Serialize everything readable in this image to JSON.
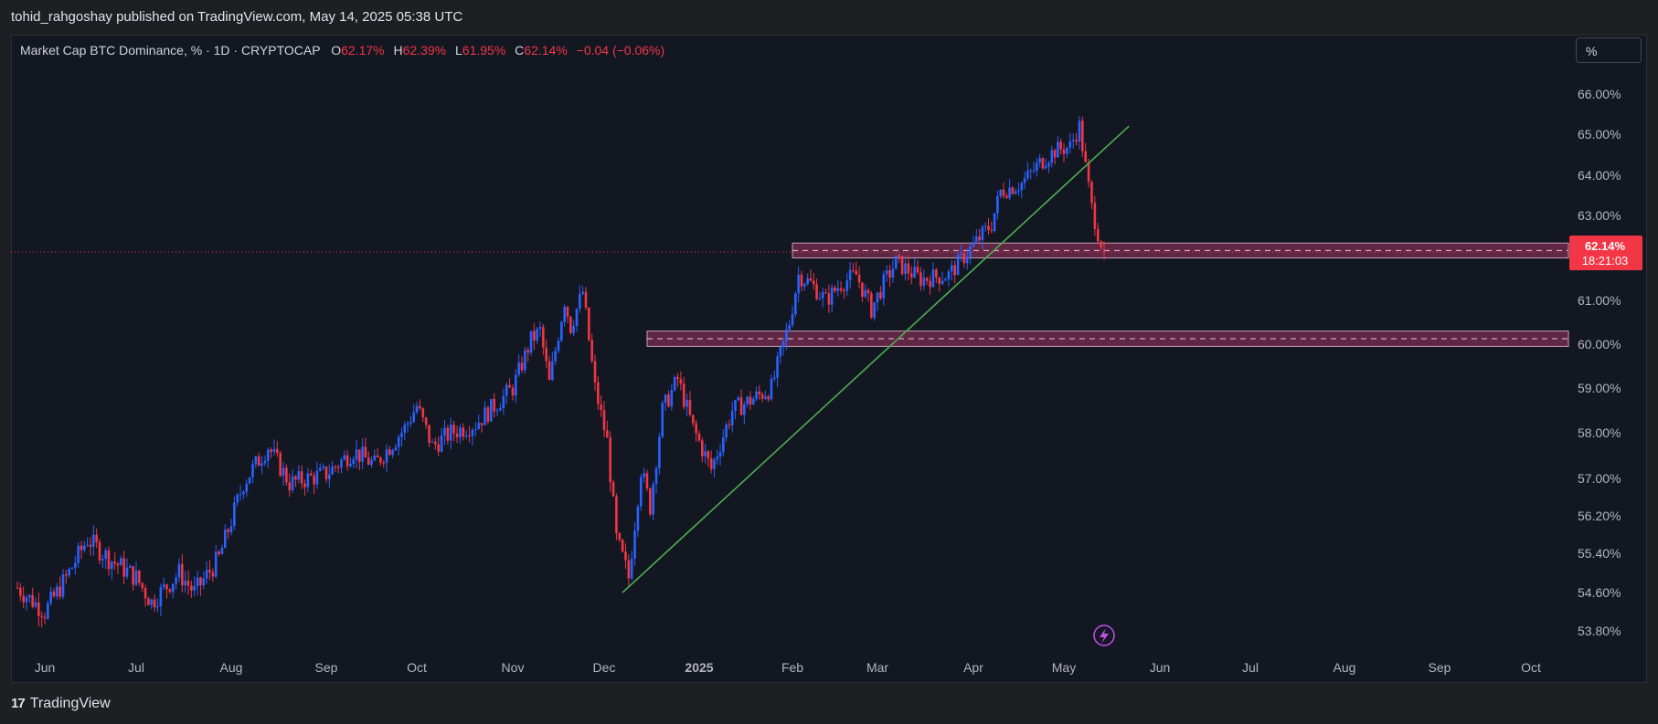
{
  "header": {
    "published_text": "tohid_rahgoshay published on TradingView.com, May 14, 2025 05:38 UTC"
  },
  "legend": {
    "symbol": "Market Cap BTC Dominance, % · 1D · CRYPTOCAP",
    "o_label": "O",
    "o_value": "62.17%",
    "h_label": "H",
    "h_value": "62.39%",
    "l_label": "L",
    "l_value": "61.95%",
    "c_label": "C",
    "c_value": "62.14%",
    "change": "−0.04 (−0.06%)"
  },
  "scale_button": {
    "label": "%"
  },
  "price_tag": {
    "price": "62.14%",
    "countdown": "18:21:03"
  },
  "footer": {
    "brand": "TradingView",
    "logo_text": "17"
  },
  "colors": {
    "up": "#2962ff",
    "down": "#f23645",
    "trendline": "#4caf50",
    "zone_fill": "#7b2d52",
    "zone_border": "#c8a0b4",
    "background": "#131722"
  },
  "chart_data": {
    "type": "candlestick",
    "x_ticks": [
      "Jun",
      "Jul",
      "Aug",
      "Sep",
      "Oct",
      "Nov",
      "Dec",
      "2025",
      "Feb",
      "Mar",
      "Apr",
      "May",
      "Jun",
      "Jul",
      "Aug",
      "Sep",
      "Oct"
    ],
    "y_ticks": [
      "66.00%",
      "65.00%",
      "64.00%",
      "63.00%",
      "61.00%",
      "60.00%",
      "59.00%",
      "58.00%",
      "57.00%",
      "56.20%",
      "55.40%",
      "54.60%",
      "53.80%"
    ],
    "y_tick_values": [
      66.0,
      65.0,
      64.0,
      63.0,
      61.0,
      60.0,
      59.0,
      58.0,
      57.0,
      56.2,
      55.4,
      54.6,
      53.8
    ],
    "last_price": 62.14,
    "anchors": [
      {
        "date": "2024-05-23",
        "close": 54.7
      },
      {
        "date": "2024-06-01",
        "close": 54.2
      },
      {
        "date": "2024-06-08",
        "close": 54.9
      },
      {
        "date": "2024-06-15",
        "close": 55.7
      },
      {
        "date": "2024-06-22",
        "close": 55.3
      },
      {
        "date": "2024-07-01",
        "close": 54.9
      },
      {
        "date": "2024-07-06",
        "close": 54.4
      },
      {
        "date": "2024-07-15",
        "close": 55.0
      },
      {
        "date": "2024-07-20",
        "close": 54.6
      },
      {
        "date": "2024-07-28",
        "close": 55.3
      },
      {
        "date": "2024-08-05",
        "close": 56.9
      },
      {
        "date": "2024-08-13",
        "close": 57.7
      },
      {
        "date": "2024-08-20",
        "close": 56.9
      },
      {
        "date": "2024-09-01",
        "close": 57.1
      },
      {
        "date": "2024-09-10",
        "close": 57.6
      },
      {
        "date": "2024-09-17",
        "close": 57.3
      },
      {
        "date": "2024-09-27",
        "close": 58.1
      },
      {
        "date": "2024-10-01",
        "close": 58.6
      },
      {
        "date": "2024-10-06",
        "close": 57.7
      },
      {
        "date": "2024-10-12",
        "close": 58.0
      },
      {
        "date": "2024-10-20",
        "close": 58.2
      },
      {
        "date": "2024-11-01",
        "close": 59.0
      },
      {
        "date": "2024-11-07",
        "close": 60.1
      },
      {
        "date": "2024-11-10",
        "close": 60.3
      },
      {
        "date": "2024-11-13",
        "close": 59.1
      },
      {
        "date": "2024-11-18",
        "close": 61.0
      },
      {
        "date": "2024-11-20",
        "close": 60.4
      },
      {
        "date": "2024-11-24",
        "close": 61.2
      },
      {
        "date": "2024-11-28",
        "close": 59.0
      },
      {
        "date": "2024-12-02",
        "close": 57.8
      },
      {
        "date": "2024-12-05",
        "close": 55.7
      },
      {
        "date": "2024-12-09",
        "close": 54.9
      },
      {
        "date": "2024-12-13",
        "close": 57.2
      },
      {
        "date": "2024-12-16",
        "close": 56.4
      },
      {
        "date": "2024-12-20",
        "close": 58.5
      },
      {
        "date": "2024-12-25",
        "close": 59.2
      },
      {
        "date": "2024-12-30",
        "close": 58.1
      },
      {
        "date": "2025-01-05",
        "close": 57.2
      },
      {
        "date": "2025-01-12",
        "close": 58.5
      },
      {
        "date": "2025-01-20",
        "close": 58.8
      },
      {
        "date": "2025-01-25",
        "close": 59.0
      },
      {
        "date": "2025-01-31",
        "close": 60.5
      },
      {
        "date": "2025-02-03",
        "close": 61.6
      },
      {
        "date": "2025-02-07",
        "close": 61.4
      },
      {
        "date": "2025-02-12",
        "close": 61.0
      },
      {
        "date": "2025-02-17",
        "close": 61.4
      },
      {
        "date": "2025-02-22",
        "close": 61.6
      },
      {
        "date": "2025-02-27",
        "close": 60.8
      },
      {
        "date": "2025-03-03",
        "close": 61.4
      },
      {
        "date": "2025-03-07",
        "close": 61.9
      },
      {
        "date": "2025-03-15",
        "close": 61.5
      },
      {
        "date": "2025-03-24",
        "close": 61.6
      },
      {
        "date": "2025-04-01",
        "close": 62.3
      },
      {
        "date": "2025-04-07",
        "close": 62.8
      },
      {
        "date": "2025-04-10",
        "close": 63.6
      },
      {
        "date": "2025-04-17",
        "close": 63.8
      },
      {
        "date": "2025-04-23",
        "close": 64.3
      },
      {
        "date": "2025-04-28",
        "close": 64.6
      },
      {
        "date": "2025-05-03",
        "close": 64.7
      },
      {
        "date": "2025-05-06",
        "close": 65.2
      },
      {
        "date": "2025-05-08",
        "close": 64.2
      },
      {
        "date": "2025-05-10",
        "close": 63.2
      },
      {
        "date": "2025-05-12",
        "close": 62.6
      },
      {
        "date": "2025-05-14",
        "close": 62.14
      }
    ],
    "zones": [
      {
        "from": "2025-02-01",
        "low": 62.0,
        "high": 62.35
      },
      {
        "from": "2024-12-15",
        "low": 59.95,
        "high": 60.3
      }
    ],
    "trendline": [
      {
        "date": "2024-12-07",
        "value": 54.6
      },
      {
        "date": "2025-05-22",
        "value": 65.2
      }
    ]
  }
}
